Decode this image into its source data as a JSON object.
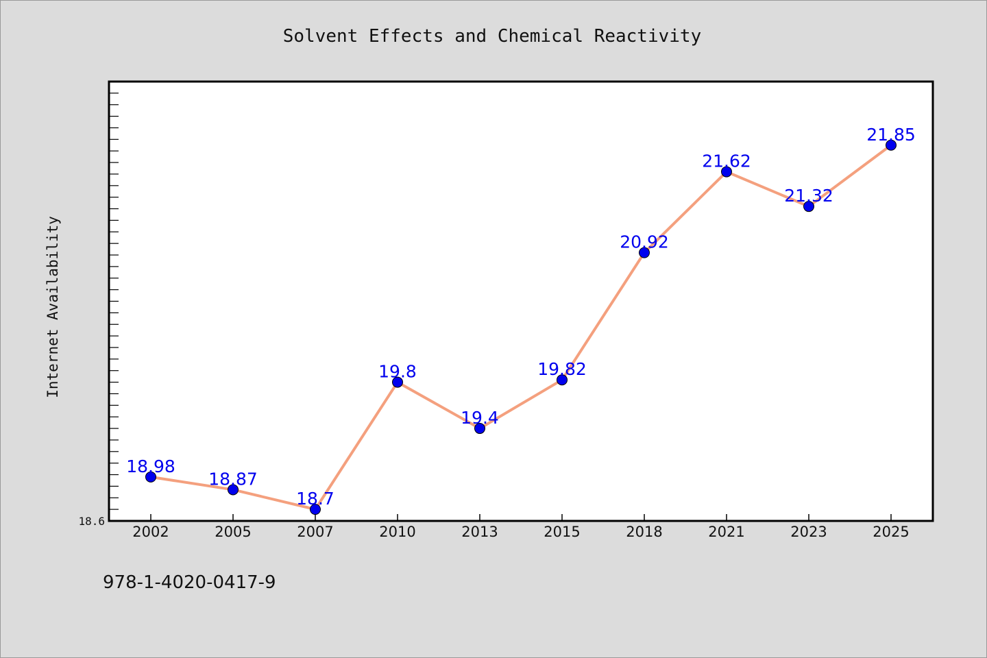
{
  "chart_data": {
    "type": "line",
    "title": "Solvent Effects and Chemical Reactivity",
    "ylabel": "Internet Availability",
    "xlabel": "",
    "categories": [
      "2002",
      "2005",
      "2007",
      "2010",
      "2013",
      "2015",
      "2018",
      "2021",
      "2023",
      "2025"
    ],
    "values": [
      18.98,
      18.87,
      18.7,
      19.8,
      19.4,
      19.82,
      20.92,
      21.62,
      21.32,
      21.85
    ],
    "data_labels": [
      "18.98",
      "18.87",
      "18.7",
      "19.8",
      "19.4",
      "19.82",
      "20.92",
      "21.62",
      "21.32",
      "21.85"
    ],
    "ylim": [
      18.6,
      22.4
    ],
    "yticks_labeled": [
      "18.6"
    ],
    "grid": false,
    "legend": "none",
    "colors": {
      "line": "#f4a07e",
      "marker": "#0000ee",
      "label": "#0000ee",
      "background": "#dcdcdc",
      "plot_background": "#ffffff"
    }
  },
  "footnote": "978-1-4020-0417-9"
}
